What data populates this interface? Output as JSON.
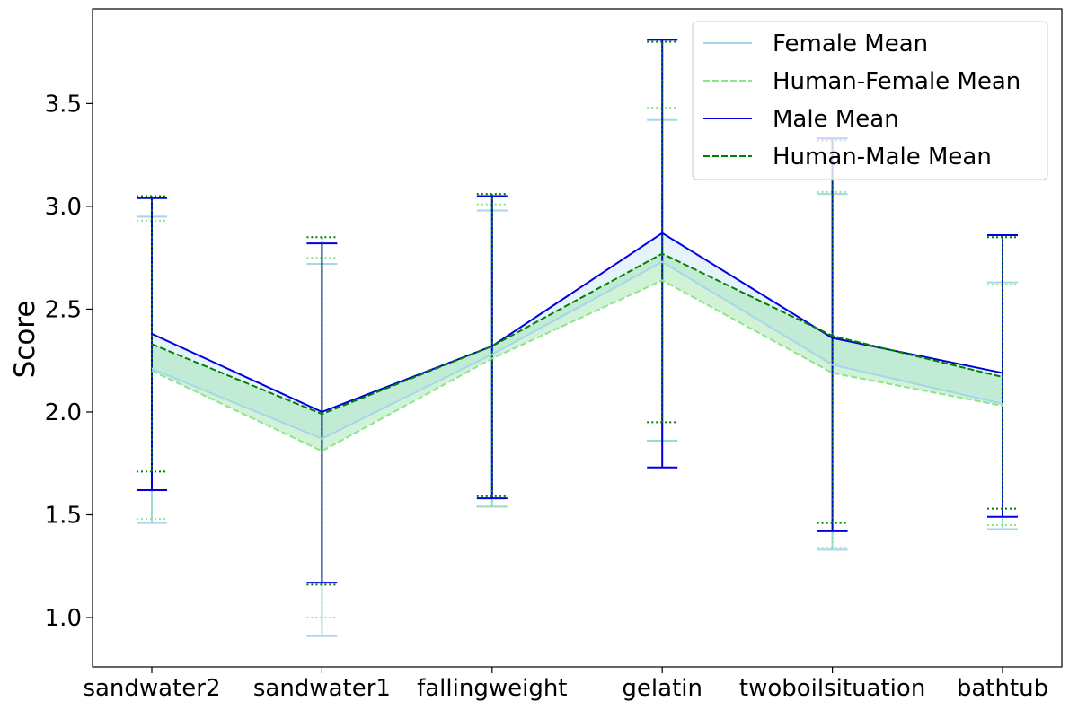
{
  "chart_data": {
    "type": "line",
    "title": "",
    "xlabel": "",
    "ylabel": "Score",
    "categories": [
      "sandwater2",
      "sandwater1",
      "fallingweight",
      "gelatin",
      "twoboilsituation",
      "bathtub"
    ],
    "ylim": [
      0.76,
      3.96
    ],
    "yticks": [
      "1.0",
      "1.5",
      "2.0",
      "2.5",
      "3.0",
      "3.5"
    ],
    "grid": false,
    "legend_position": "top-right",
    "series": [
      {
        "name": "Female Mean",
        "color": "#a6d6ea",
        "style": "solid",
        "values": [
          2.21,
          1.87,
          2.28,
          2.73,
          2.23,
          2.04
        ],
        "err_low": [
          1.46,
          0.91,
          1.54,
          1.86,
          1.33,
          1.43
        ],
        "err_high": [
          2.95,
          2.72,
          2.98,
          3.42,
          3.06,
          2.63
        ]
      },
      {
        "name": "Human-Female Mean",
        "color": "#8ce68c",
        "style": "dashed",
        "values": [
          2.2,
          1.81,
          2.26,
          2.64,
          2.19,
          2.03
        ],
        "err_low": [
          1.48,
          1.0,
          1.54,
          1.86,
          1.34,
          1.45
        ],
        "err_high": [
          2.93,
          2.75,
          3.01,
          3.48,
          3.07,
          2.62
        ]
      },
      {
        "name": "Male Mean",
        "color": "#0000e0",
        "style": "solid",
        "values": [
          2.38,
          2.0,
          2.32,
          2.87,
          2.36,
          2.19
        ],
        "err_low": [
          1.62,
          1.17,
          1.58,
          1.73,
          1.42,
          1.49
        ],
        "err_high": [
          3.04,
          2.82,
          3.05,
          3.81,
          3.33,
          2.86
        ]
      },
      {
        "name": "Human-Male Mean",
        "color": "#008000",
        "style": "dashed",
        "values": [
          2.33,
          1.99,
          2.32,
          2.77,
          2.37,
          2.17
        ],
        "err_low": [
          1.71,
          1.16,
          1.59,
          1.95,
          1.46,
          1.53
        ],
        "err_high": [
          3.05,
          2.85,
          3.06,
          3.8,
          3.32,
          2.85
        ]
      }
    ]
  }
}
